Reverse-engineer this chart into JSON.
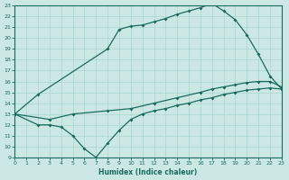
{
  "xlabel": "Humidex (Indice chaleur)",
  "bg_color": "#cce8e5",
  "line_color": "#1a6b5e",
  "grid_color": "#aad4d0",
  "xlim": [
    0,
    23
  ],
  "ylim": [
    9,
    23
  ],
  "xticks": [
    0,
    1,
    2,
    3,
    4,
    5,
    6,
    7,
    8,
    9,
    10,
    11,
    12,
    13,
    14,
    15,
    16,
    17,
    18,
    19,
    20,
    21,
    22,
    23
  ],
  "yticks": [
    9,
    10,
    11,
    12,
    13,
    14,
    15,
    16,
    17,
    18,
    19,
    20,
    21,
    22,
    23
  ],
  "x_upper": [
    0,
    2,
    8,
    9,
    10,
    11,
    12,
    13,
    14,
    15,
    16,
    17,
    18,
    19,
    20,
    21,
    22,
    23
  ],
  "y_upper": [
    13,
    14.8,
    19,
    20.8,
    21.1,
    21.2,
    21.5,
    21.8,
    22.2,
    22.5,
    22.8,
    23.2,
    22.5,
    21.7,
    20.3,
    18.5,
    16.5,
    15.3
  ],
  "x_mid": [
    0,
    3,
    5,
    8,
    10,
    12,
    14,
    16,
    17,
    18,
    19,
    20,
    21,
    22,
    23
  ],
  "y_mid": [
    13,
    12.5,
    13.0,
    13.3,
    13.5,
    14.0,
    14.5,
    15.0,
    15.3,
    15.5,
    15.7,
    15.9,
    16.0,
    16.0,
    15.5
  ],
  "x_lower": [
    0,
    2,
    3,
    4,
    5,
    6,
    7,
    8,
    9,
    10,
    11,
    12,
    13,
    14,
    15,
    16,
    17,
    18,
    19,
    20,
    21,
    22,
    23
  ],
  "y_lower": [
    13,
    12.0,
    12.0,
    11.8,
    11.0,
    9.8,
    9.0,
    10.3,
    11.5,
    12.5,
    13.0,
    13.3,
    13.5,
    13.8,
    14.0,
    14.3,
    14.5,
    14.8,
    15.0,
    15.2,
    15.3,
    15.4,
    15.3
  ]
}
